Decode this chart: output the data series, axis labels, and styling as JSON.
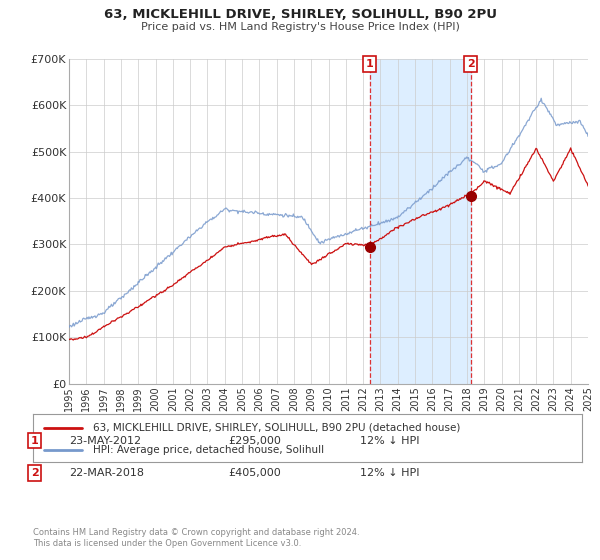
{
  "title": "63, MICKLEHILL DRIVE, SHIRLEY, SOLIHULL, B90 2PU",
  "subtitle": "Price paid vs. HM Land Registry's House Price Index (HPI)",
  "xlim": [
    1995,
    2025
  ],
  "ylim": [
    0,
    700000
  ],
  "yticks": [
    0,
    100000,
    200000,
    300000,
    400000,
    500000,
    600000,
    700000
  ],
  "ytick_labels": [
    "£0",
    "£100K",
    "£200K",
    "£300K",
    "£400K",
    "£500K",
    "£600K",
    "£700K"
  ],
  "xticks": [
    1995,
    1996,
    1997,
    1998,
    1999,
    2000,
    2001,
    2002,
    2003,
    2004,
    2005,
    2006,
    2007,
    2008,
    2009,
    2010,
    2011,
    2012,
    2013,
    2014,
    2015,
    2016,
    2017,
    2018,
    2019,
    2020,
    2021,
    2022,
    2023,
    2024,
    2025
  ],
  "sale1_date": 2012.39,
  "sale1_price": 295000,
  "sale2_date": 2018.22,
  "sale2_price": 405000,
  "vline_color": "#dd3333",
  "shaded_region_color": "#ddeeff",
  "line_price_color": "#cc1111",
  "line_hpi_color": "#7799cc",
  "legend_label_price": "63, MICKLEHILL DRIVE, SHIRLEY, SOLIHULL, B90 2PU (detached house)",
  "legend_label_hpi": "HPI: Average price, detached house, Solihull",
  "annotation1_date": "23-MAY-2012",
  "annotation1_price": "£295,000",
  "annotation1_hpi": "12% ↓ HPI",
  "annotation2_date": "22-MAR-2018",
  "annotation2_price": "£405,000",
  "annotation2_hpi": "12% ↓ HPI",
  "footer": "Contains HM Land Registry data © Crown copyright and database right 2024.\nThis data is licensed under the Open Government Licence v3.0.",
  "background_color": "#ffffff",
  "grid_color": "#cccccc"
}
